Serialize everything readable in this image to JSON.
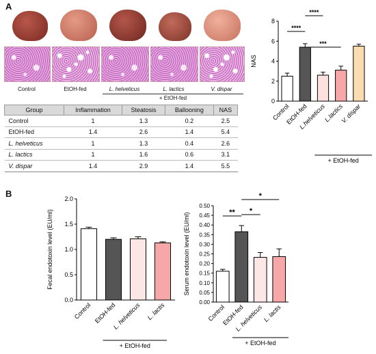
{
  "panels": {
    "a": "A",
    "b": "B"
  },
  "image_groups": [
    "Control",
    "EtOH-fed",
    "L. helveticus",
    "L. lactics",
    "V. dispar"
  ],
  "etoh_caption": "+ EtOH-fed",
  "table": {
    "headers": [
      "Group",
      "Inflammation",
      "Steatosis",
      "Ballooning",
      "NAS"
    ],
    "rows": [
      [
        "Control",
        "1",
        "1.3",
        "0.2",
        "2.5"
      ],
      [
        "EtOH-fed",
        "1.4",
        "2.6",
        "1.4",
        "5.4"
      ],
      [
        "L. helveticus",
        "1",
        "1.3",
        "0.4",
        "2.6"
      ],
      [
        "L. lactics",
        "1",
        "1.6",
        "0.6",
        "3.1"
      ],
      [
        "V. dispar",
        "1.4",
        "2.9",
        "1.4",
        "5.5"
      ]
    ]
  },
  "chart_data": [
    {
      "type": "bar",
      "categories": [
        "Control",
        "EtOH-fed",
        "L.helveticus",
        "L.lactics",
        "V. dispar"
      ],
      "values": [
        2.5,
        5.4,
        2.6,
        3.1,
        5.5
      ],
      "errors": [
        0.3,
        0.35,
        0.3,
        0.4,
        0.2
      ],
      "ylabel": "NAS",
      "ylim": [
        0,
        8
      ],
      "yticks": [
        0,
        2,
        4,
        6,
        8
      ],
      "colors": [
        "#ffffff",
        "#555555",
        "#fde0e0",
        "#f7a7a7",
        "#fbdcb0"
      ],
      "significance": [
        {
          "from": 0,
          "to": 1,
          "label": "****"
        },
        {
          "from": 1,
          "to": 2,
          "label": "****"
        },
        {
          "from": 1,
          "to": 3,
          "label": "***"
        }
      ],
      "group_caption": "+ EtOH-fed"
    },
    {
      "type": "bar",
      "categories": [
        "Control",
        "EtOH-fed",
        "L. helveticus",
        "L. lactis"
      ],
      "values": [
        1.41,
        1.2,
        1.21,
        1.13
      ],
      "errors": [
        0.03,
        0.03,
        0.04,
        0.02
      ],
      "ylabel": "Fecal endotoxin level (EU/ml)",
      "ylim": [
        0,
        2.0
      ],
      "yticks": [
        "0.0",
        "0.5",
        "1.0",
        "1.5",
        "2.0"
      ],
      "colors": [
        "#ffffff",
        "#555555",
        "#fde6e6",
        "#f7a7a7"
      ],
      "group_caption": "+ EtOH-fed"
    },
    {
      "type": "bar",
      "categories": [
        "Control",
        "EtOH-fed",
        "L. helveticus",
        "L. lactis"
      ],
      "values": [
        0.16,
        0.365,
        0.232,
        0.236
      ],
      "errors": [
        0.01,
        0.032,
        0.025,
        0.04
      ],
      "ylabel": "Serum endotoxin level (EU/ml)",
      "ylim": [
        0,
        0.5
      ],
      "yticks": [
        "0.00",
        "0.05",
        "0.10",
        "0.15",
        "0.20",
        "0.25",
        "0.30",
        "0.35",
        "0.40",
        "0.45",
        "0.50"
      ],
      "colors": [
        "#ffffff",
        "#555555",
        "#fde6e6",
        "#f7a7a7"
      ],
      "significance": [
        {
          "from": 0,
          "to": 1,
          "label": "**"
        },
        {
          "from": 1,
          "to": 2,
          "label": "*"
        },
        {
          "from": 1,
          "to": 3,
          "label": "*"
        }
      ],
      "group_caption": "+ EtOH-fed"
    }
  ]
}
